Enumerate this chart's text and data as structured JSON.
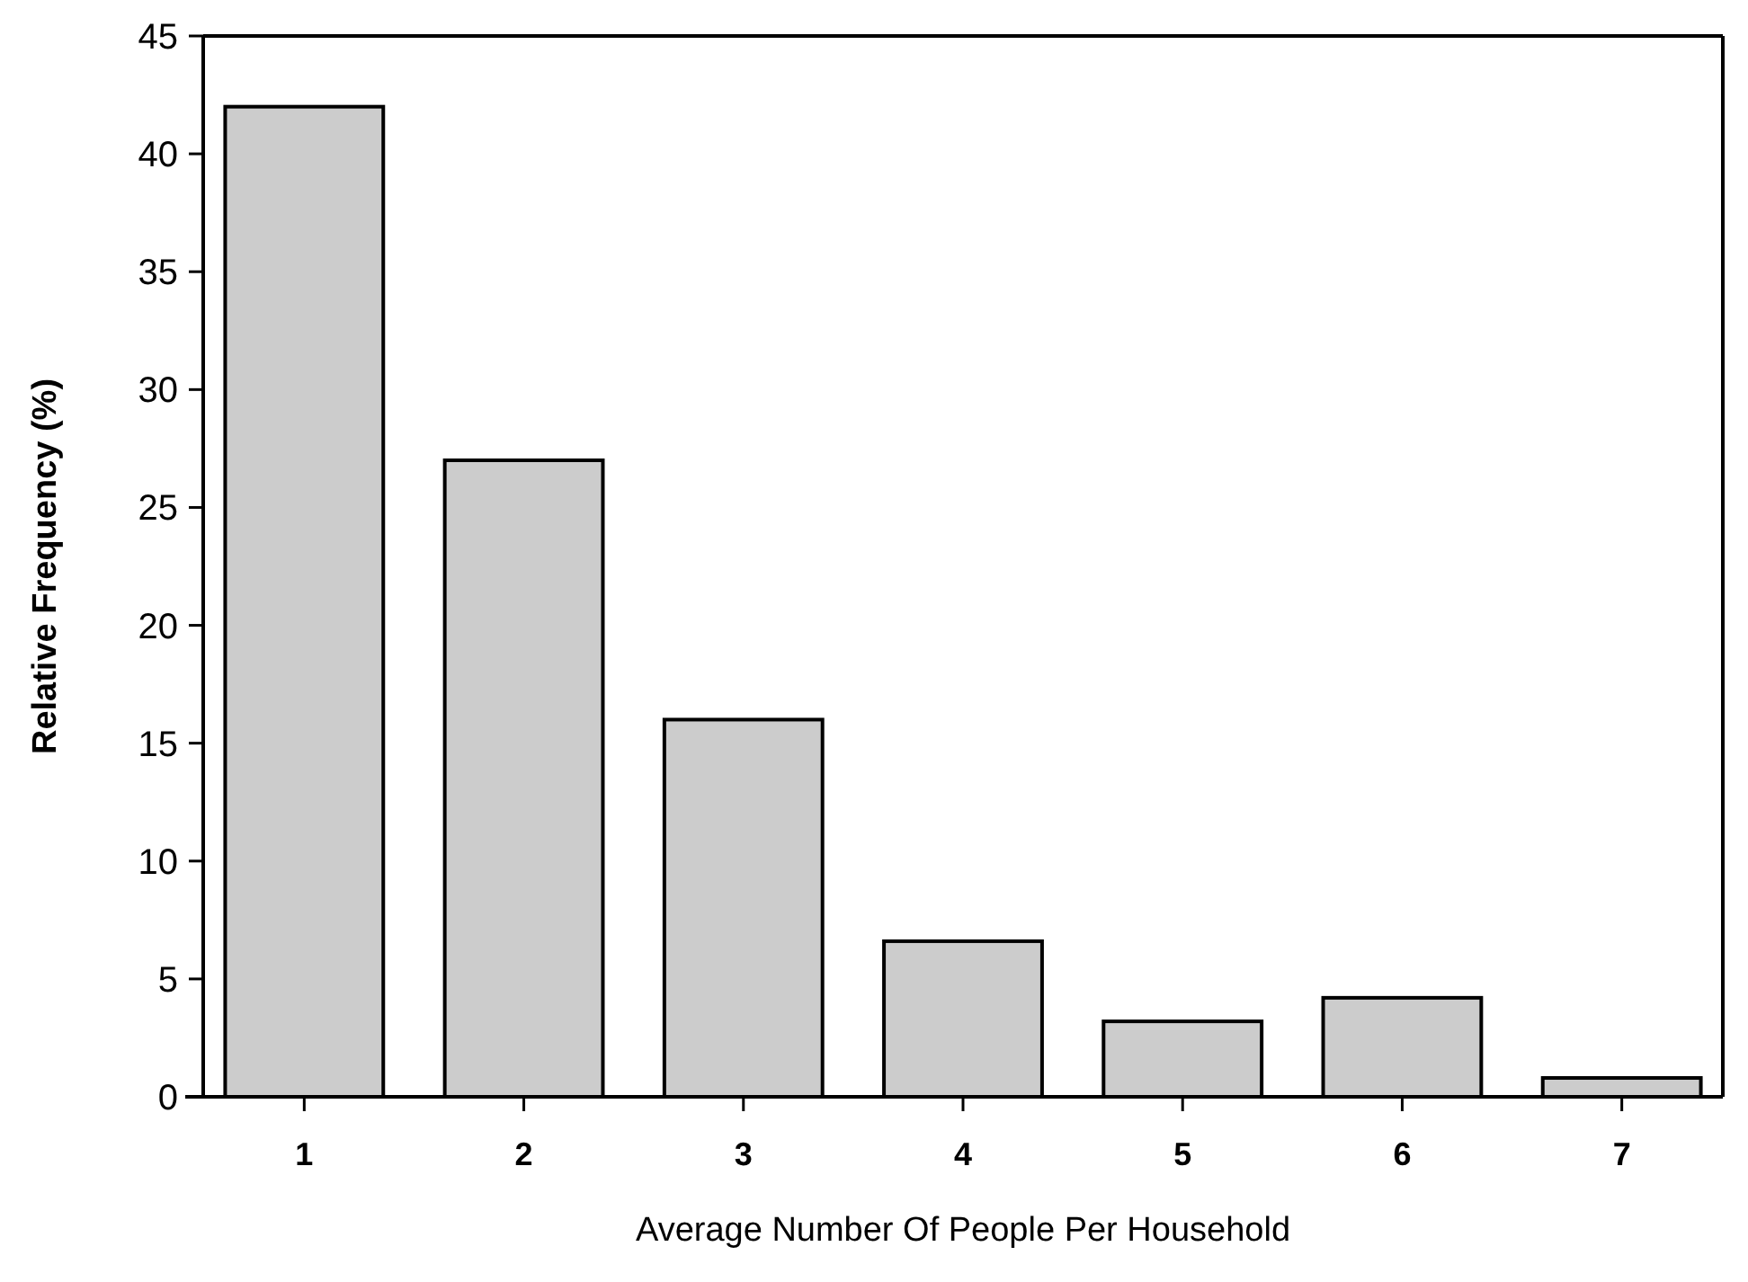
{
  "chart_data": {
    "type": "bar",
    "xlabel": "Average Number Of People Per Household",
    "ylabel": "Relative Frequency (%)",
    "categories": [
      "1",
      "2",
      "3",
      "4",
      "5",
      "6",
      "7"
    ],
    "values": [
      42,
      27,
      16,
      6.6,
      3.2,
      4.2,
      0.8
    ],
    "color": "#cccccc",
    "ylim": [
      0,
      45
    ],
    "yticks": [
      0,
      5,
      10,
      15,
      20,
      25,
      30,
      35,
      40,
      45
    ],
    "grid": false
  }
}
